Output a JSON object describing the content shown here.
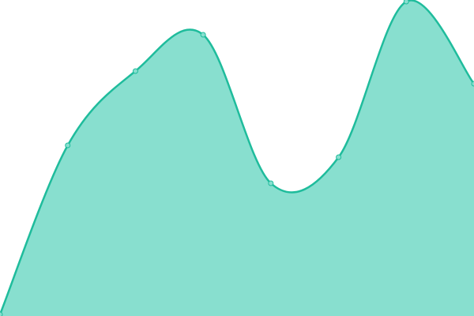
{
  "chart_data": {
    "type": "area",
    "x": [
      0,
      1,
      2,
      3,
      4,
      5,
      6,
      7
    ],
    "values": [
      2,
      216,
      310,
      356,
      168,
      201,
      398,
      294
    ],
    "ylim": [
      0,
      400
    ],
    "grid": false,
    "smooth": true,
    "colors": {
      "line": "#1fbc9c",
      "fill": "#88dfcf",
      "point": "#88dfcf"
    }
  }
}
